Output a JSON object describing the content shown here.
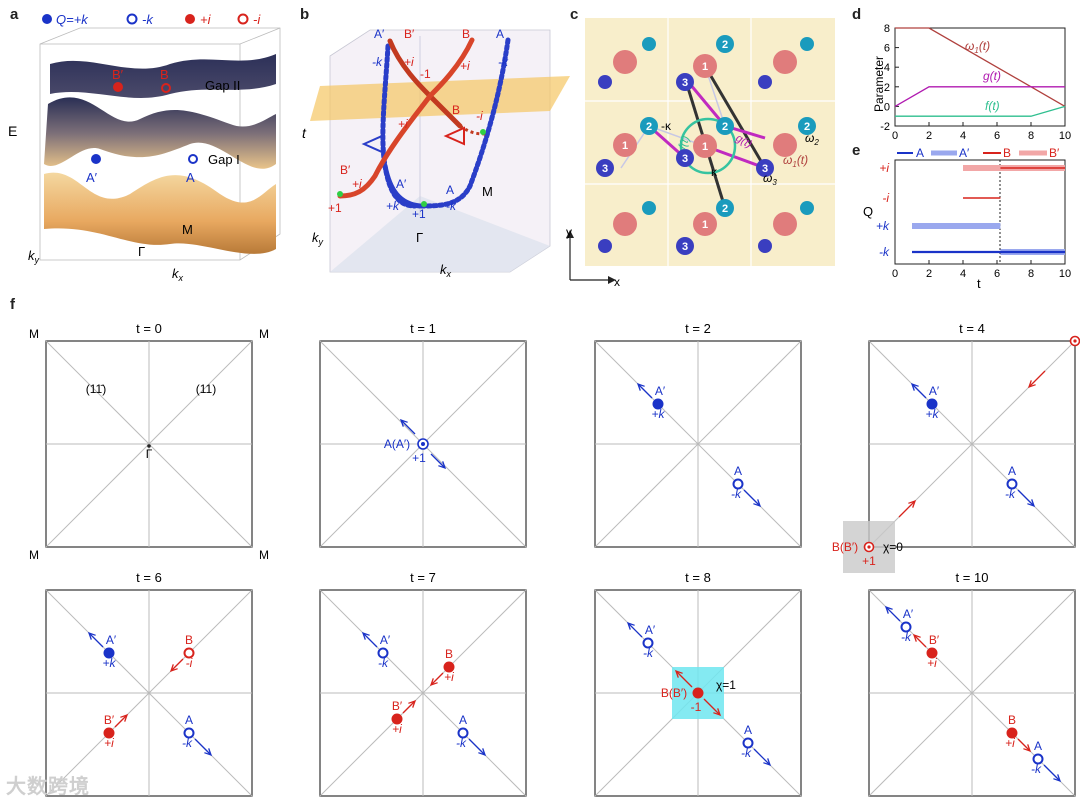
{
  "panel_letters": {
    "a": "a",
    "b": "b",
    "c": "c",
    "d": "d",
    "e": "e",
    "f": "f"
  },
  "legend": {
    "q_plus_k": "Q=+k",
    "minus_k": "-k",
    "plus_i": "+i",
    "minus_i": "-i"
  },
  "panel_a": {
    "gap2": "Gap II",
    "gap1": "Gap I",
    "E": "E",
    "A": "A",
    "Ap": "A′",
    "B": "B",
    "Bp": "B′",
    "M": "M",
    "Gamma": "Γ",
    "ky": "k",
    "ky_sub": "y",
    "kx": "k",
    "kx_sub": "x"
  },
  "panel_b": {
    "t": "t",
    "M": "M",
    "Gamma": "Γ",
    "ky": "k",
    "ky_sub": "y",
    "kx": "k",
    "kx_sub": "x",
    "labels": {
      "Ap_top": "A′",
      "Bp_top": "B′",
      "B_top": "B",
      "A_top": "A",
      "mk1": "-k",
      "pi1": "+i",
      "m1": "-1",
      "pi2": "+i",
      "mk2": "-k",
      "pi3": "+i",
      "B_mid": "B",
      "mi": "-i",
      "Bp_mid": "B′",
      "pi4": "+i",
      "Ap_bot": "A′",
      "A_bot": "A",
      "p1a": "+1",
      "pk": "+k",
      "p1b": "+1",
      "mk3": "-k"
    }
  },
  "panel_c": {
    "y": "y",
    "x": "x",
    "mkappa": "-κ",
    "kappa": "κ",
    "g": "g(t)",
    "f": "f(t)",
    "w1": "ω",
    "w1_sub": "1",
    "w1_t": "(t)",
    "w2": "ω",
    "w2_sub": "2",
    "w3": "ω",
    "w3_sub": "3",
    "site1": "1",
    "site2": "2",
    "site3": "3"
  },
  "panel_d": {
    "ylabel": "Parameter",
    "w1": "ω",
    "w1_sub": "1",
    "w1_t": "(t)",
    "g": "g(t)",
    "f": "f(t)",
    "yticks": [
      "8",
      "6",
      "4",
      "2",
      "0",
      "-2"
    ],
    "xticks": [
      "0",
      "2",
      "4",
      "6",
      "8",
      "10"
    ]
  },
  "panel_e": {
    "ylabel": "Q",
    "xlabel": "t",
    "legend": [
      "A",
      "A′",
      "B",
      "B′"
    ],
    "yticks": [
      "+i",
      "-i",
      "+k",
      "-k"
    ],
    "xticks": [
      "0",
      "2",
      "4",
      "6",
      "8",
      "10"
    ]
  },
  "panel_f": {
    "corner": "M",
    "gamma": "Γ",
    "dir1": "(11̄)",
    "dir2": "(11)",
    "chi0": "χ=0",
    "chi1": "χ=1",
    "titles": [
      "t = 0",
      "t = 1",
      "t = 2",
      "t = 4",
      "t = 6",
      "t = 7",
      "t = 8",
      "t = 10"
    ],
    "labels": {
      "AAp": "A(A′)",
      "p1": "+1",
      "Ap": "A′",
      "A": "A",
      "B": "B",
      "Bp": "B′",
      "BBp": "B(B′)",
      "pk": "+k",
      "mk": "-k",
      "pi": "+i",
      "mi": "-i",
      "m1": "-1"
    }
  },
  "watermark": "大数跨境",
  "chart_data": [
    {
      "type": "line",
      "panel": "d",
      "ylabel": "Parameter",
      "xlim": [
        0,
        10
      ],
      "ylim": [
        -2,
        8
      ],
      "series": [
        {
          "name": "ω1(t)",
          "color": "#b0413e",
          "x": [
            0,
            2,
            10
          ],
          "y": [
            8,
            8,
            0
          ]
        },
        {
          "name": "g(t)",
          "color": "#b01ab0",
          "x": [
            0,
            2,
            10
          ],
          "y": [
            0,
            2,
            2
          ]
        },
        {
          "name": "f(t)",
          "color": "#2fbf8f",
          "x": [
            0,
            8,
            10
          ],
          "y": [
            -1,
            -1,
            0
          ]
        }
      ]
    },
    {
      "type": "line",
      "panel": "e",
      "ylabel": "Q",
      "xlabel": "t",
      "xlim": [
        0,
        10
      ],
      "categories": [
        "-k",
        "+k",
        "-i",
        "+i"
      ],
      "series": [
        {
          "name": "A",
          "color": "#1a33c8",
          "segments": [
            [
              1,
              10,
              "-k"
            ]
          ]
        },
        {
          "name": "A′",
          "color": "#9aa8ee",
          "segments": [
            [
              1,
              6.2,
              "+k"
            ],
            [
              6.2,
              10,
              "-k"
            ]
          ]
        },
        {
          "name": "B",
          "color": "#d8231c",
          "segments": [
            [
              4,
              6.2,
              "-i"
            ],
            [
              6.2,
              10,
              "+i"
            ]
          ]
        },
        {
          "name": "B′",
          "color": "#f2a7a7",
          "segments": [
            [
              4,
              10,
              "+i"
            ]
          ]
        }
      ]
    }
  ]
}
